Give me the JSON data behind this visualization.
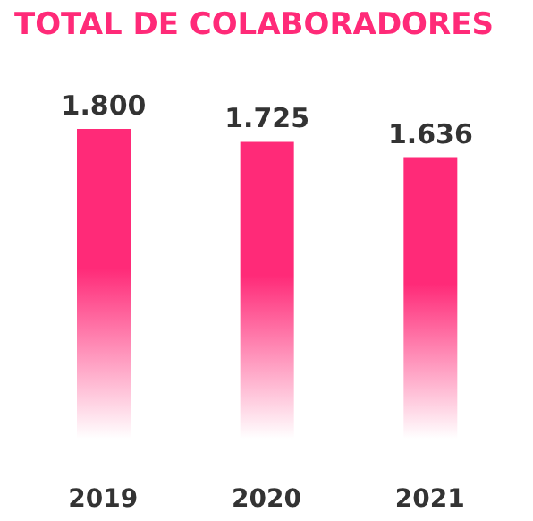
{
  "chart_data": {
    "type": "bar",
    "title": "TOTAL DE COLABORADORES",
    "categories": [
      "2019",
      "2020",
      "2021"
    ],
    "values": [
      1800,
      1725,
      1636
    ],
    "value_labels": [
      "1.800",
      "1.725",
      "1.636"
    ],
    "color": "#ff2a78",
    "grid": false,
    "legend": false
  }
}
